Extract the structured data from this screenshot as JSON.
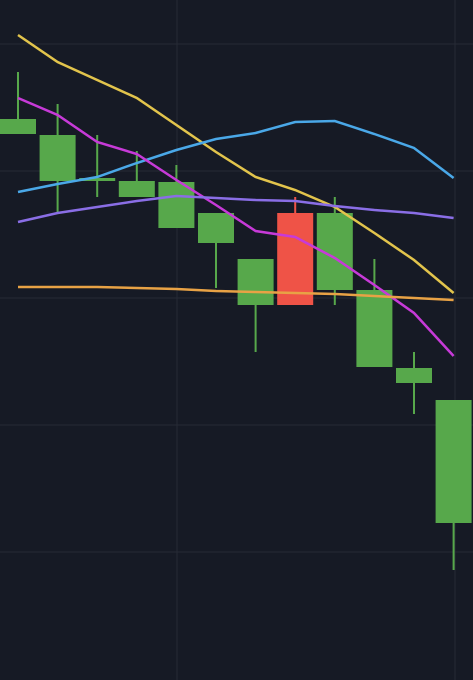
{
  "chart_data": {
    "type": "candlestick",
    "categories": [
      null,
      null,
      null,
      null,
      null,
      null,
      null,
      null,
      null,
      null,
      null,
      null
    ],
    "open": [
      54.6,
      49.9,
      49.9,
      48.3,
      45.2,
      43.7,
      37.5,
      46.7,
      39,
      31.3,
      29.7,
      15.7
    ],
    "high": [
      60.8,
      57.6,
      54.5,
      52.9,
      51.5,
      46.7,
      42.1,
      48.3,
      48.3,
      42.1,
      32.8,
      28
    ],
    "low": [
      54.6,
      46.8,
      48.3,
      48.3,
      45.2,
      39.2,
      32.8,
      37.5,
      37.5,
      31.3,
      26.6,
      11
    ],
    "close": [
      56.1,
      54.5,
      50.2,
      49.9,
      49.8,
      46.7,
      42.1,
      37.5,
      46.7,
      39,
      31.2,
      28
    ],
    "up_color": "#57a84b",
    "down_color": "#ef5347",
    "lines": [
      {
        "color": "#e2c44c",
        "values": [
          64.5,
          61.8,
          60,
          58.2,
          55.5,
          52.8,
          50.3,
          49,
          47.3,
          44.7,
          42,
          38.7
        ]
      },
      {
        "color": "#4aa8e8",
        "values": [
          48.8,
          49.6,
          50.3,
          51.7,
          53,
          54.1,
          54.7,
          55.8,
          55.9,
          54.6,
          53.2,
          50.2
        ]
      },
      {
        "color": "#c73ad8",
        "values": [
          58.2,
          56.5,
          53.8,
          52.6,
          50,
          47.5,
          44.9,
          44.3,
          42.2,
          39.5,
          36.7,
          32.4
        ]
      },
      {
        "color": "#8a6ee6",
        "values": [
          45.8,
          46.7,
          47.3,
          47.9,
          48.4,
          48.2,
          48,
          47.9,
          47.4,
          47,
          46.7,
          46.2
        ]
      },
      {
        "color": "#e8a245",
        "values": [
          39.3,
          39.3,
          39.3,
          39.2,
          39.1,
          38.9,
          38.8,
          38.7,
          38.6,
          38.4,
          38.2,
          38
        ]
      }
    ],
    "ylim": [
      0,
      68
    ],
    "yticks": [
      12.8,
      25.5,
      38.2,
      50.9,
      63.6
    ],
    "grid": true
  }
}
